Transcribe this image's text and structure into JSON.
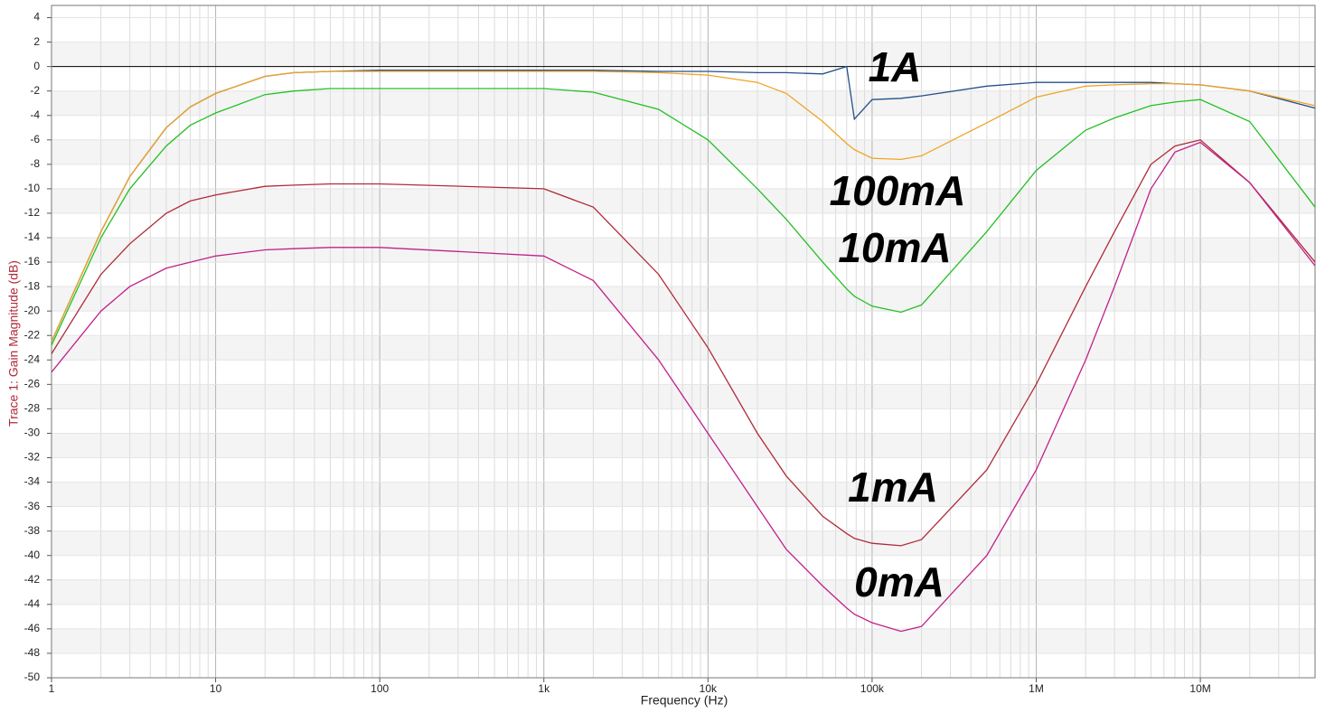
{
  "chart_data": {
    "type": "line",
    "xlabel": "Frequency (Hz)",
    "ylabel": "Trace 1: Gain Magnitude (dB)",
    "xscale": "log",
    "xlim": [
      1,
      50000000
    ],
    "ylim": [
      -50,
      5
    ],
    "xticks": [
      1,
      10,
      100,
      {
        "value": 1000,
        "label": "1k"
      },
      {
        "value": 10000,
        "label": "10k"
      },
      {
        "value": 100000,
        "label": "100k"
      },
      {
        "value": 1000000,
        "label": "1M"
      },
      {
        "value": 10000000,
        "label": "10M"
      }
    ],
    "yticks": [
      -50,
      -48,
      -46,
      -44,
      -42,
      -40,
      -38,
      -36,
      -34,
      -32,
      -30,
      -28,
      -26,
      -24,
      -22,
      -20,
      -18,
      -16,
      -14,
      -12,
      -10,
      -8,
      -6,
      -4,
      -2,
      0,
      2,
      4
    ],
    "grid": true,
    "hline": 0,
    "x": [
      1,
      2,
      3,
      5,
      7,
      10,
      20,
      30,
      50,
      100,
      1000,
      2000,
      5000,
      10000,
      20000,
      30000,
      50000,
      70000,
      78000,
      100000,
      150000,
      200000,
      500000,
      1000000,
      2000000,
      3000000,
      5000000,
      7000000,
      10000000,
      20000000,
      50000000
    ],
    "series": [
      {
        "name": "1A",
        "color": "#24508c",
        "values": [
          -22.5,
          -13.5,
          -9,
          -5,
          -3.3,
          -2.2,
          -0.8,
          -0.5,
          -0.4,
          -0.3,
          -0.3,
          -0.3,
          -0.4,
          -0.4,
          -0.5,
          -0.5,
          -0.6,
          0,
          -4.3,
          -2.7,
          -2.6,
          -2.4,
          -1.6,
          -1.3,
          -1.3,
          -1.3,
          -1.3,
          -1.4,
          -1.5,
          -2,
          -3.4
        ]
      },
      {
        "name": "100mA",
        "color": "#f0a424",
        "values": [
          -22.5,
          -13.5,
          -9,
          -5,
          -3.3,
          -2.2,
          -0.8,
          -0.5,
          -0.4,
          -0.4,
          -0.4,
          -0.4,
          -0.5,
          -0.7,
          -1.3,
          -2.2,
          -4.5,
          -6.3,
          -6.8,
          -7.5,
          -7.6,
          -7.3,
          -4.6,
          -2.5,
          -1.6,
          -1.5,
          -1.4,
          -1.4,
          -1.5,
          -2,
          -3.2
        ]
      },
      {
        "name": "10mA",
        "color": "#22c022",
        "values": [
          -22.8,
          -14,
          -10,
          -6.5,
          -4.8,
          -3.8,
          -2.3,
          -2,
          -1.8,
          -1.8,
          -1.8,
          -2.1,
          -3.5,
          -6,
          -10,
          -12.5,
          -16,
          -18.2,
          -18.8,
          -19.6,
          -20.1,
          -19.5,
          -13.5,
          -8.5,
          -5.2,
          -4.2,
          -3.2,
          -2.9,
          -2.7,
          -4.5,
          -11.5
        ]
      },
      {
        "name": "1mA",
        "color": "#b02a3a",
        "values": [
          -23.5,
          -17,
          -14.5,
          -12,
          -11,
          -10.5,
          -9.8,
          -9.7,
          -9.6,
          -9.6,
          -10,
          -11.5,
          -17,
          -23,
          -30,
          -33.5,
          -36.8,
          -38.2,
          -38.6,
          -39,
          -39.2,
          -38.7,
          -33,
          -26,
          -18,
          -13.5,
          -8,
          -6.5,
          -6,
          -9.5,
          -16
        ]
      },
      {
        "name": "0mA",
        "color": "#c0208a",
        "values": [
          -25,
          -20,
          -18,
          -16.5,
          -16,
          -15.5,
          -15,
          -14.9,
          -14.8,
          -14.8,
          -15.5,
          -17.5,
          -24,
          -30,
          -36,
          -39.5,
          -42.5,
          -44.3,
          -44.8,
          -45.5,
          -46.2,
          -45.8,
          -40,
          -33,
          -24,
          -18,
          -10,
          -7,
          -6.2,
          -9.5,
          -16.3
        ]
      }
    ]
  }
}
